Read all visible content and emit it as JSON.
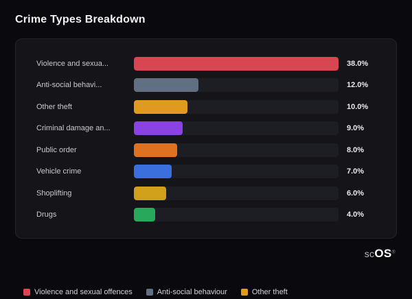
{
  "header": {
    "title": "Crime Types Breakdown"
  },
  "chart_data": {
    "type": "bar",
    "orientation": "horizontal",
    "title": "Crime Types Breakdown",
    "categories": [
      "Violence and sexua...",
      "Anti-social behavi...",
      "Other theft",
      "Criminal damage an...",
      "Public order",
      "Vehicle crime",
      "Shoplifting",
      "Drugs"
    ],
    "values": [
      38.0,
      12.0,
      10.0,
      9.0,
      8.0,
      7.0,
      6.0,
      4.0
    ],
    "value_labels": [
      "38.0%",
      "12.0%",
      "10.0%",
      "9.0%",
      "8.0%",
      "7.0%",
      "6.0%",
      "4.0%"
    ],
    "bar_colors": [
      "#d94550",
      "#607082",
      "#e09a20",
      "#8a42e3",
      "#df7220",
      "#3b6fdd",
      "#d0a01b",
      "#27a85b"
    ],
    "xlim": [
      0,
      38
    ],
    "grid": false,
    "legend_position": "bottom",
    "legend": [
      {
        "label": "Violence and sexual offences",
        "color": "#d94550"
      },
      {
        "label": "Anti-social behaviour",
        "color": "#607082"
      },
      {
        "label": "Other theft",
        "color": "#e09a20"
      }
    ]
  },
  "footer": {
    "logo_light": "sc",
    "logo_bold": "OS",
    "logo_reg": "®"
  }
}
